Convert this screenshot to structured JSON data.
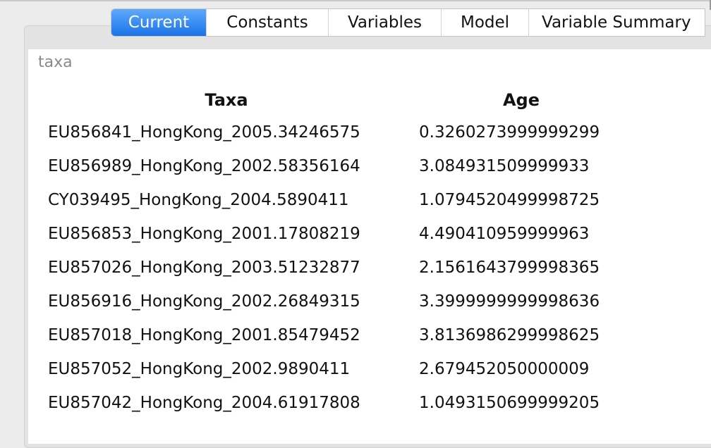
{
  "tabs": [
    {
      "label": "Current",
      "active": true
    },
    {
      "label": "Constants",
      "active": false
    },
    {
      "label": "Variables",
      "active": false
    },
    {
      "label": "Model",
      "active": false
    },
    {
      "label": "Variable Summary",
      "active": false
    }
  ],
  "section_label": "taxa",
  "table": {
    "headers": [
      "Taxa",
      "Age"
    ],
    "rows": [
      [
        "EU856841_HongKong_2005.34246575",
        "0.3260273999999299"
      ],
      [
        "EU856989_HongKong_2002.58356164",
        "3.084931509999933"
      ],
      [
        "CY039495_HongKong_2004.5890411",
        "1.0794520499998725"
      ],
      [
        "EU856853_HongKong_2001.17808219",
        "4.490410959999963"
      ],
      [
        "EU857026_HongKong_2003.51232877",
        "2.1561643799998365"
      ],
      [
        "EU856916_HongKong_2002.26849315",
        "3.3999999999998636"
      ],
      [
        "EU857018_HongKong_2001.85479452",
        "3.8136986299998625"
      ],
      [
        "EU857052_HongKong_2002.9890411",
        "2.679452050000009"
      ],
      [
        "EU857042_HongKong_2004.61917808",
        "1.0493150699999205"
      ]
    ]
  },
  "colors": {
    "tab_active_top": "#5ea9fb",
    "tab_active_bottom": "#1a73e8",
    "panel_background": "#ffffff",
    "window_background": "#ececec"
  }
}
